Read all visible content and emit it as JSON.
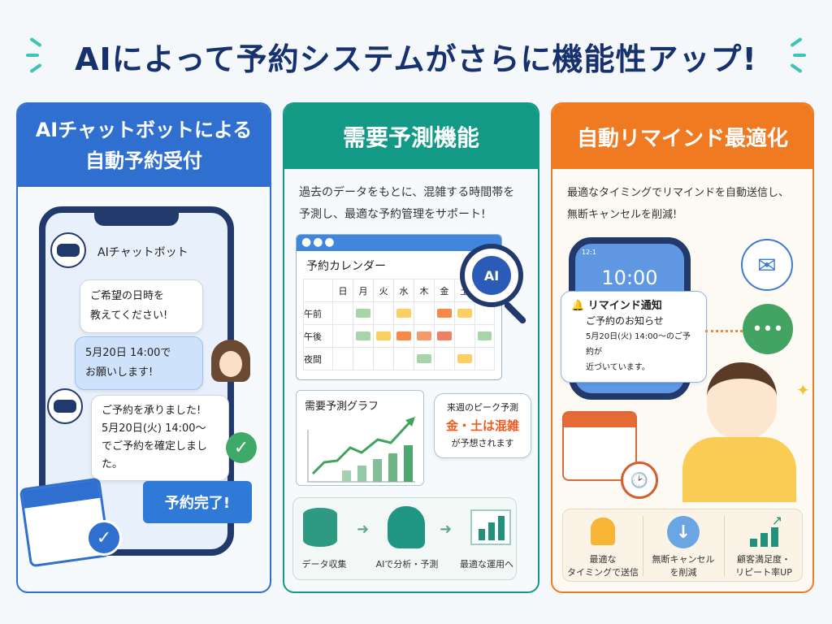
{
  "title": "AIによって予約システムがさらに機能性アップ!",
  "colors": {
    "blue": "#2f6fd0",
    "teal": "#139a86",
    "orange": "#f07a22",
    "navy": "#17306e"
  },
  "panel1": {
    "heading_line1": "AIチャットボットによる",
    "heading_line2": "自動予約受付",
    "bot_name": "AIチャットボット",
    "bot_msg1_line1": "ご希望の日時を",
    "bot_msg1_line2": "教えてください!",
    "user_msg_line1": "5月20日 14:00で",
    "user_msg_line2": "お願いします!",
    "bot_msg2_line1": "ご予約を承りました!",
    "bot_msg2_line2": "5月20日(火) 14:00〜",
    "bot_msg2_line3": "でご予約を確定しました。",
    "complete_label": "予約完了!",
    "icons": [
      "robot-icon",
      "user-avatar",
      "check-icon",
      "calendar-icon"
    ]
  },
  "panel2": {
    "heading": "需要予測機能",
    "desc_line1": "過去のデータをもとに、混雑する時間帯を",
    "desc_line2": "予測し、最適な予約管理をサポート!",
    "calendar_title": "予約カレンダー",
    "days": [
      "日",
      "月",
      "火",
      "水",
      "木",
      "金",
      "土",
      ""
    ],
    "rows": [
      {
        "label": "午前",
        "levels": [
          "",
          "low",
          "",
          "mid",
          "",
          "high",
          "mid",
          ""
        ]
      },
      {
        "label": "午後",
        "levels": [
          "",
          "low",
          "mid",
          "high",
          "higher",
          "highest",
          "",
          "low"
        ]
      },
      {
        "label": "夜間",
        "levels": [
          "",
          "",
          "",
          "",
          "low",
          "",
          "mid",
          ""
        ]
      }
    ],
    "level_colors": {
      "low": "#a9d3a8",
      "mid": "#fbcf62",
      "high": "#f58a47",
      "higher": "#f39a6c",
      "highest": "#ef7f65"
    },
    "ai_badge": "AI",
    "graph_title": "需要予測グラフ",
    "peak_line1": "来週のピーク予測",
    "peak_highlight": "金・土は混雑",
    "peak_line3": "が予想されます",
    "flow": [
      "データ収集",
      "AIで分析・予測",
      "最適な運用へ"
    ]
  },
  "panel3": {
    "heading": "自動リマインド最適化",
    "desc_line1": "最適なタイミングでリマインドを自動送信し、",
    "desc_line2": "無断キャンセルを削減!",
    "phone_time": "10:00",
    "status_time": "12:1",
    "notif_title": "リマインド通知",
    "notif_sub": "ご予約のお知らせ",
    "notif_body1": "5月20日(火) 14:00〜のご予約が",
    "notif_body2": "近づいています。",
    "benefits": [
      {
        "line1": "最適な",
        "line2": "タイミングで送信",
        "icon": "bell-icon"
      },
      {
        "line1": "無断キャンセル",
        "line2": "を削減",
        "icon": "down-arrow-icon"
      },
      {
        "line1": "顧客満足度・",
        "line2": "リピート率UP",
        "icon": "growth-chart-icon"
      }
    ]
  }
}
